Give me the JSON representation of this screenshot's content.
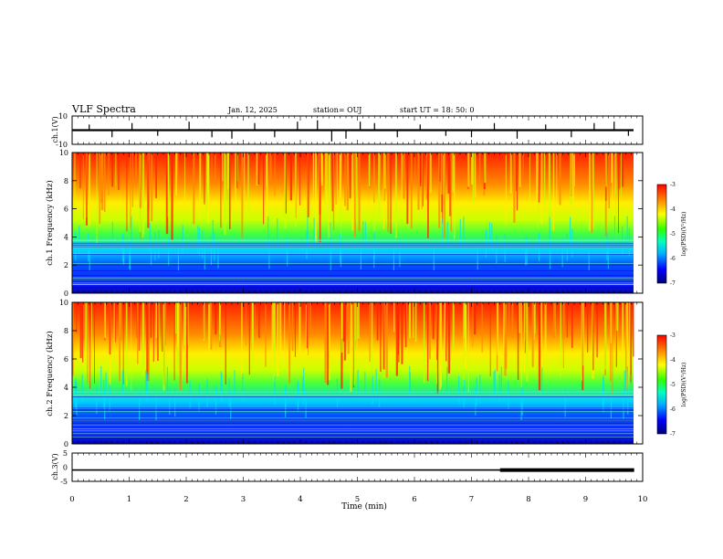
{
  "header": {
    "title": "VLF Spectra",
    "date": "Jan. 12, 2025",
    "station": "station= OUJ",
    "start": "start  UT  =   18: 50: 0"
  },
  "chart_data": [
    {
      "type": "line",
      "panel": "waveform-ch1",
      "ylabel": "ch.1(V)",
      "ylim": [
        -10,
        10
      ],
      "yticks": [
        "10",
        "-10"
      ],
      "xlim": [
        0,
        10
      ],
      "series": [
        {
          "baseline": 0,
          "x": [
            0.3,
            0.7,
            1.05,
            1.5,
            2.05,
            2.45,
            2.8,
            3.2,
            3.55,
            3.95,
            4.3,
            4.55,
            4.8,
            5.05,
            5.3,
            5.7,
            6.1,
            6.55,
            7.0,
            7.4,
            7.8,
            8.3,
            8.75,
            9.15,
            9.5,
            9.75
          ],
          "y": [
            4,
            -5,
            5,
            -4,
            6,
            -5,
            -6,
            5,
            -5,
            6,
            7,
            -8,
            -6,
            6,
            5,
            -5,
            4,
            -4,
            -5,
            5,
            -6,
            4,
            -5,
            5,
            6,
            -4
          ]
        }
      ]
    },
    {
      "type": "heatmap",
      "panel": "spectrogram-ch1",
      "ylabel": "ch.1 Frequency  (kHz)",
      "ylim": [
        0,
        10
      ],
      "yticks": [
        "0",
        "2",
        "4",
        "6",
        "8",
        "10"
      ],
      "xlim": [
        0,
        10
      ],
      "colorbar": {
        "label": "log(PSD)(V²/Hz)",
        "range": [
          -7,
          -3
        ],
        "ticks": [
          "-3",
          "-4",
          "-5",
          "-6",
          "-7"
        ]
      }
    },
    {
      "type": "heatmap",
      "panel": "spectrogram-ch2",
      "ylabel": "ch.2 Frequency  (kHz)",
      "ylim": [
        0,
        10
      ],
      "yticks": [
        "0",
        "2",
        "4",
        "6",
        "8",
        "10"
      ],
      "xlim": [
        0,
        10
      ],
      "colorbar": {
        "label": "log(PSD)(V²/Hz)",
        "range": [
          -7,
          -3
        ],
        "ticks": [
          "-3",
          "-4",
          "-5",
          "-6",
          "-7"
        ]
      }
    },
    {
      "type": "line",
      "panel": "waveform-ch3",
      "ylabel": "ch.3(V)",
      "ylim": [
        -5,
        5
      ],
      "yticks": [
        "5",
        "0",
        "-5"
      ],
      "xlim": [
        0,
        10
      ],
      "xlabel": "Time  (min)",
      "xticks": [
        "0",
        "1",
        "2",
        "3",
        "4",
        "5",
        "6",
        "7",
        "8",
        "9",
        "10"
      ],
      "series": [
        {
          "x": [
            0,
            9.85
          ],
          "y": [
            -1,
            -1
          ],
          "thick_from": 7.5
        }
      ]
    }
  ]
}
